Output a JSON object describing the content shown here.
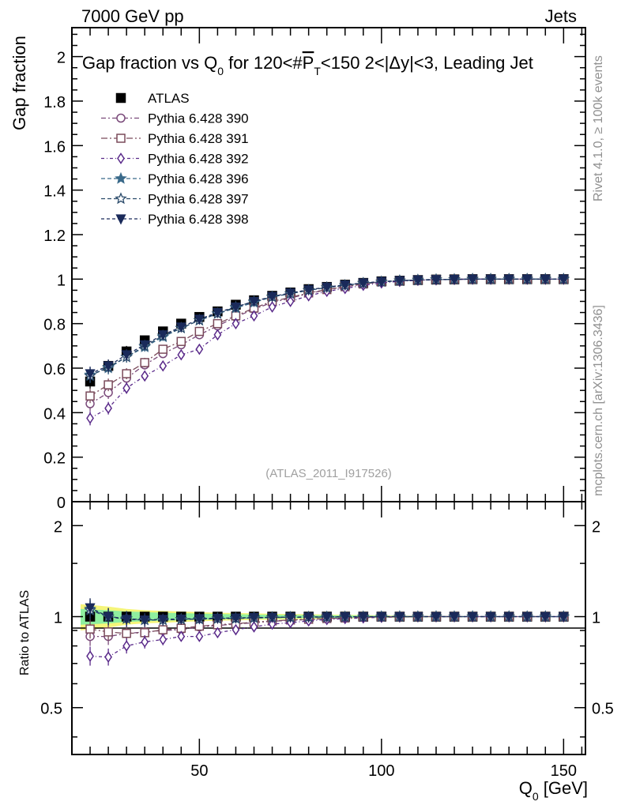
{
  "header": {
    "left": "7000 GeV pp",
    "right": "Jets"
  },
  "side_text": {
    "rivet": "Rivet 4.1.0, ≥ 100k events",
    "mcplots": "mcplots.cern.ch [arXiv:1306.3436]"
  },
  "watermark": "(ATLAS_2011_I917526)",
  "chart_data": [
    {
      "type": "line",
      "panel": "main",
      "title": "Gap fraction vs Q0 for 120<#PT<150  2<|Δy|<3, Leading Jet",
      "title_parts": {
        "a": "Gap fraction vs Q",
        "a_sub": "0",
        "b": " for 120<#",
        "b_over": "P",
        "b_sub": "T",
        "c": "<150  2<|Δy|<3, Leading Jet"
      },
      "ylabel": "Gap fraction",
      "xlabel": "",
      "xlim": [
        15,
        156
      ],
      "ylim": [
        0,
        2.13
      ],
      "yticks": [
        0,
        0.2,
        0.4,
        0.6,
        0.8,
        1,
        1.2,
        1.4,
        1.6,
        1.8,
        2
      ],
      "ytick_labels": [
        "0",
        "0.2",
        "0.4",
        "0.6",
        "0.8",
        "1",
        "1.2",
        "1.4",
        "1.6",
        "1.8",
        "2"
      ],
      "x": [
        20,
        25,
        30,
        35,
        40,
        45,
        50,
        55,
        60,
        65,
        70,
        75,
        80,
        85,
        90,
        95,
        100,
        105,
        110,
        115,
        120,
        125,
        130,
        135,
        140,
        145,
        150
      ],
      "series": [
        {
          "name": "ATLAS",
          "marker": "square-filled",
          "color": "#000000",
          "values": [
            0.54,
            0.61,
            0.675,
            0.725,
            0.765,
            0.8,
            0.83,
            0.855,
            0.885,
            0.905,
            0.925,
            0.94,
            0.955,
            0.965,
            0.975,
            0.983,
            0.99,
            0.993,
            0.996,
            0.998,
            0.999,
            1.0,
            1.0,
            1.0,
            1.0,
            1.0,
            1.0
          ]
        },
        {
          "name": "Pythia 6.428 390",
          "marker": "circle-open",
          "color": "#7a4a7a",
          "values": [
            0.44,
            0.49,
            0.555,
            0.615,
            0.665,
            0.705,
            0.75,
            0.79,
            0.83,
            0.865,
            0.895,
            0.915,
            0.935,
            0.952,
            0.965,
            0.978,
            0.988,
            0.993,
            0.996,
            0.998,
            0.999,
            1.0,
            1.0,
            1.0,
            1.0,
            1.0,
            1.0
          ]
        },
        {
          "name": "Pythia 6.428 391",
          "marker": "square-open",
          "color": "#7a4a5a",
          "values": [
            0.475,
            0.525,
            0.575,
            0.625,
            0.685,
            0.72,
            0.765,
            0.8,
            0.835,
            0.87,
            0.9,
            0.918,
            0.938,
            0.953,
            0.966,
            0.978,
            0.988,
            0.993,
            0.996,
            0.998,
            0.999,
            1.0,
            1.0,
            1.0,
            1.0,
            1.0,
            1.0
          ]
        },
        {
          "name": "Pythia 6.428 392",
          "marker": "diamond-open",
          "color": "#5a2a8a",
          "values": [
            0.375,
            0.42,
            0.51,
            0.565,
            0.61,
            0.66,
            0.685,
            0.75,
            0.8,
            0.835,
            0.875,
            0.9,
            0.925,
            0.945,
            0.958,
            0.972,
            0.983,
            0.99,
            0.995,
            0.997,
            0.999,
            1.0,
            1.0,
            1.0,
            1.0,
            1.0,
            1.0
          ]
        },
        {
          "name": "Pythia 6.428 396",
          "marker": "star-filled",
          "color": "#3a6a8a",
          "values": [
            0.57,
            0.6,
            0.65,
            0.695,
            0.74,
            0.78,
            0.815,
            0.845,
            0.87,
            0.895,
            0.92,
            0.935,
            0.95,
            0.962,
            0.972,
            0.982,
            0.988,
            0.993,
            0.996,
            0.998,
            0.999,
            1.0,
            1.0,
            1.0,
            1.0,
            1.0,
            1.0
          ]
        },
        {
          "name": "Pythia 6.428 397",
          "marker": "star-open",
          "color": "#2a4a6a",
          "values": [
            0.565,
            0.605,
            0.65,
            0.7,
            0.745,
            0.78,
            0.815,
            0.845,
            0.875,
            0.9,
            0.92,
            0.935,
            0.95,
            0.962,
            0.972,
            0.982,
            0.988,
            0.993,
            0.996,
            0.998,
            0.999,
            1.0,
            1.0,
            1.0,
            1.0,
            1.0,
            1.0
          ]
        },
        {
          "name": "Pythia 6.428 398",
          "marker": "triangle-down-filled",
          "color": "#1a2a5a",
          "values": [
            0.575,
            0.61,
            0.66,
            0.705,
            0.75,
            0.785,
            0.82,
            0.85,
            0.875,
            0.9,
            0.922,
            0.938,
            0.952,
            0.964,
            0.974,
            0.983,
            0.989,
            0.993,
            0.996,
            0.998,
            0.999,
            1.0,
            1.0,
            1.0,
            1.0,
            1.0,
            1.0
          ]
        }
      ],
      "legend": "top-left"
    },
    {
      "type": "line",
      "panel": "ratio",
      "ylabel": "Ratio to ATLAS",
      "xlabel": "Q0 [GeV]",
      "xlabel_parts": {
        "a": "Q",
        "sub": "0",
        "b": " [GeV]"
      },
      "yscale": "log",
      "xlim": [
        15,
        156
      ],
      "ylim": [
        0.35,
        2.4
      ],
      "xticks": [
        50,
        100,
        150
      ],
      "xtick_labels": [
        "50",
        "100",
        "150"
      ],
      "yticks": [
        0.5,
        1,
        2
      ],
      "ytick_labels": [
        "0.5",
        "1",
        "2"
      ],
      "x": [
        20,
        25,
        30,
        35,
        40,
        45,
        50,
        55,
        60,
        65,
        70,
        75,
        80,
        85,
        90,
        95,
        100,
        105,
        110,
        115,
        120,
        125,
        130,
        135,
        140,
        145,
        150
      ],
      "band_yellow": [
        0.1,
        0.08,
        0.06,
        0.05,
        0.045,
        0.04,
        0.035,
        0.03,
        0.028,
        0.025,
        0.022,
        0.02,
        0.018,
        0.016,
        0.014,
        0.012,
        0.01,
        0.008,
        0.006,
        0.005,
        0.004,
        0.003,
        0.003,
        0.003,
        0.003,
        0.003,
        0.003
      ],
      "band_green": [
        0.06,
        0.05,
        0.04,
        0.035,
        0.03,
        0.027,
        0.024,
        0.02,
        0.018,
        0.016,
        0.014,
        0.012,
        0.011,
        0.01,
        0.009,
        0.008,
        0.007,
        0.005,
        0.004,
        0.003,
        0.002,
        0.002,
        0.002,
        0.002,
        0.002,
        0.002,
        0.002
      ],
      "series": [
        {
          "name": "Pythia 6.428 390",
          "marker": "circle-open",
          "color": "#7a4a7a",
          "values": [
            0.86,
            0.86,
            0.88,
            0.89,
            0.9,
            0.905,
            0.925,
            0.935,
            0.945,
            0.955,
            0.965,
            0.972,
            0.978,
            0.985,
            0.99,
            0.995,
            0.998,
            1.0,
            1.0,
            1.0,
            1.0,
            1.0,
            1.0,
            1.0,
            1.0,
            1.0,
            1.0
          ]
        },
        {
          "name": "Pythia 6.428 391",
          "marker": "square-open",
          "color": "#7a4a5a",
          "values": [
            0.91,
            0.89,
            0.88,
            0.885,
            0.905,
            0.915,
            0.93,
            0.94,
            0.948,
            0.958,
            0.968,
            0.975,
            0.98,
            0.986,
            0.99,
            0.995,
            0.998,
            1.0,
            1.0,
            1.0,
            1.0,
            1.0,
            1.0,
            1.0,
            1.0,
            1.0,
            1.0
          ]
        },
        {
          "name": "Pythia 6.428 392",
          "marker": "diamond-open",
          "color": "#5a2a8a",
          "values": [
            0.74,
            0.735,
            0.8,
            0.825,
            0.84,
            0.86,
            0.86,
            0.885,
            0.905,
            0.925,
            0.945,
            0.955,
            0.968,
            0.978,
            0.985,
            0.99,
            0.995,
            0.998,
            1.0,
            1.0,
            1.0,
            1.0,
            1.0,
            1.0,
            1.0,
            1.0,
            1.0
          ]
        },
        {
          "name": "Pythia 6.428 396",
          "marker": "star-filled",
          "color": "#3a6a8a",
          "values": [
            1.06,
            1.0,
            0.985,
            0.975,
            0.975,
            0.98,
            0.98,
            0.985,
            0.985,
            0.99,
            0.993,
            0.995,
            0.996,
            0.997,
            0.998,
            0.999,
            1.0,
            1.0,
            1.0,
            1.0,
            1.0,
            1.0,
            1.0,
            1.0,
            1.0,
            1.0,
            1.0
          ]
        },
        {
          "name": "Pythia 6.428 397",
          "marker": "star-open",
          "color": "#2a4a6a",
          "values": [
            1.05,
            1.0,
            0.985,
            0.975,
            0.975,
            0.98,
            0.982,
            0.985,
            0.988,
            0.992,
            0.994,
            0.995,
            0.996,
            0.997,
            0.998,
            0.999,
            1.0,
            1.0,
            1.0,
            1.0,
            1.0,
            1.0,
            1.0,
            1.0,
            1.0,
            1.0,
            1.0
          ]
        },
        {
          "name": "Pythia 6.428 398",
          "marker": "triangle-down-filled",
          "color": "#1a2a5a",
          "values": [
            1.07,
            1.0,
            0.98,
            0.975,
            0.98,
            0.982,
            0.985,
            0.988,
            0.99,
            0.993,
            0.995,
            0.996,
            0.997,
            0.998,
            0.999,
            1.0,
            1.0,
            1.0,
            1.0,
            1.0,
            1.0,
            1.0,
            1.0,
            1.0,
            1.0,
            1.0,
            1.0
          ]
        }
      ]
    }
  ]
}
